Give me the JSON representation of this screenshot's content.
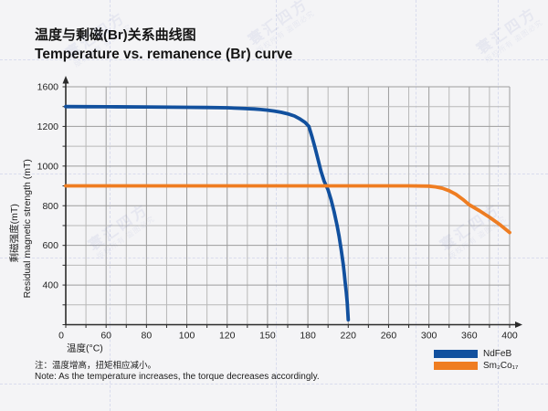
{
  "page": {
    "background": "#f4f4f6"
  },
  "header": {
    "title_zh": "温度与剩磁(Br)关系曲线图",
    "title_en": "Temperature vs. remanence (Br) curve"
  },
  "chart_data": {
    "type": "line",
    "title": "Temperature vs. remanence (Br) curve",
    "x_axis": {
      "label": "温度(°C)",
      "categories": [
        0,
        60,
        80,
        100,
        120,
        150,
        180,
        220,
        260,
        300,
        360,
        400
      ],
      "note": "category-style axis, labels equally spaced"
    },
    "y_axis": {
      "label_zh": "剩磁强度(mT)",
      "label_en": "Residual magnetic strength (mT)",
      "categories": [
        0,
        400,
        600,
        800,
        1000,
        1200,
        1600
      ],
      "note": "category-style axis, labels equally spaced, origin 0 shared with x-axis"
    },
    "grid": {
      "major_color": "#9c9c9c",
      "minor_color": "#b8b8b8",
      "minor": "one minor line midway between majors"
    },
    "axis_color": "#2b2b2b",
    "legend_position": "bottom-right",
    "series": [
      {
        "name": "NdFeB",
        "color": "#11509e",
        "points": [
          [
            0,
            1400
          ],
          [
            30,
            1399
          ],
          [
            60,
            1398
          ],
          [
            80,
            1396
          ],
          [
            100,
            1393
          ],
          [
            110,
            1391
          ],
          [
            120,
            1388
          ],
          [
            130,
            1383
          ],
          [
            140,
            1376
          ],
          [
            145,
            1371
          ],
          [
            150,
            1364
          ],
          [
            155,
            1355
          ],
          [
            160,
            1343
          ],
          [
            165,
            1327
          ],
          [
            170,
            1305
          ],
          [
            174,
            1276
          ],
          [
            178,
            1240
          ],
          [
            181,
            1200
          ],
          [
            184,
            1150
          ],
          [
            187,
            1095
          ],
          [
            190,
            1035
          ],
          [
            193,
            975
          ],
          [
            196,
            925
          ],
          [
            200,
            880
          ],
          [
            203,
            830
          ],
          [
            206,
            770
          ],
          [
            209,
            700
          ],
          [
            211,
            645
          ],
          [
            213,
            580
          ],
          [
            215,
            505
          ],
          [
            216,
            460
          ],
          [
            217,
            410
          ],
          [
            218,
            330
          ],
          [
            219,
            220
          ],
          [
            220,
            50
          ]
        ]
      },
      {
        "name": "Sm₂Co₁₇",
        "color": "#ef7d21",
        "points": [
          [
            0,
            900
          ],
          [
            60,
            900
          ],
          [
            120,
            900
          ],
          [
            180,
            900
          ],
          [
            240,
            900
          ],
          [
            280,
            900
          ],
          [
            300,
            899
          ],
          [
            310,
            895
          ],
          [
            320,
            888
          ],
          [
            330,
            876
          ],
          [
            340,
            858
          ],
          [
            350,
            833
          ],
          [
            360,
            805
          ],
          [
            370,
            775
          ],
          [
            380,
            742
          ],
          [
            390,
            706
          ],
          [
            400,
            665
          ]
        ]
      }
    ]
  },
  "note": {
    "line_zh": "注：温度增高，扭矩相应减小。",
    "line_en": "Note: As the temperature increases, the torque decreases accordingly."
  },
  "watermark": {
    "text_main": "寰汇四方",
    "text_sub": "版权所有 盗图必究"
  }
}
